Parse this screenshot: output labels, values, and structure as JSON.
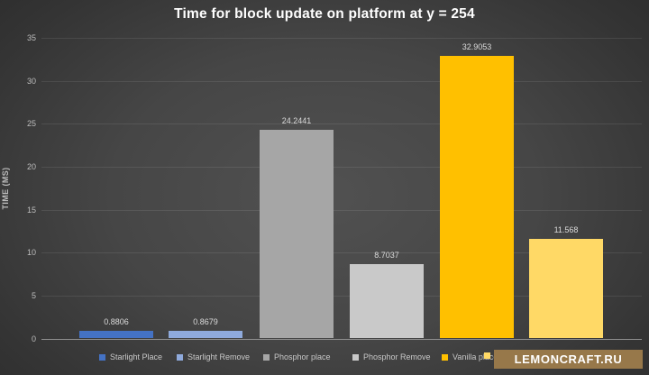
{
  "title": "Time for block update on platform at y = 254",
  "watermark": {
    "text": "LEMONCRAFT.RU",
    "bg_color": "#97784a",
    "text_color": "#ffffff"
  },
  "chart_data": {
    "type": "bar",
    "title": "Time for block update on platform at y = 254",
    "xlabel": "",
    "ylabel": "TIME (MS)",
    "ylim": [
      0,
      35
    ],
    "yticks": [
      0,
      5,
      10,
      15,
      20,
      25,
      30,
      35
    ],
    "grid": true,
    "legend_position": "bottom",
    "categories": [
      "Starlight Place",
      "Starlight Remove",
      "Phosphor place",
      "Phosphor Remove",
      "Vanilla place",
      ""
    ],
    "values": [
      0.8806,
      0.8679,
      24.2441,
      8.7037,
      32.9053,
      11.568
    ],
    "value_labels": [
      "0.8806",
      "0.8679",
      "24.2441",
      "8.7037",
      "32.9053",
      "11.568"
    ],
    "bar_colors": [
      "#4472C4",
      "#8FAADC",
      "#A6A6A6",
      "#C9C9C9",
      "#FFC000",
      "#FFD966"
    ],
    "background": "dark-radial-gradient",
    "grid_color": "rgba(255,255,255,0.09)",
    "baseline_color": "#8f8f8f"
  },
  "legend": {
    "items": [
      {
        "label": "Starlight Place",
        "color": "#4472C4"
      },
      {
        "label": "Starlight Remove",
        "color": "#8FAADC"
      },
      {
        "label": "Phosphor place",
        "color": "#A6A6A6"
      },
      {
        "label": "Phosphor Remove",
        "color": "#C9C9C9"
      },
      {
        "label": "Vanilla place",
        "color": "#FFC000"
      },
      {
        "label": "",
        "color": "#FFD966"
      }
    ]
  }
}
